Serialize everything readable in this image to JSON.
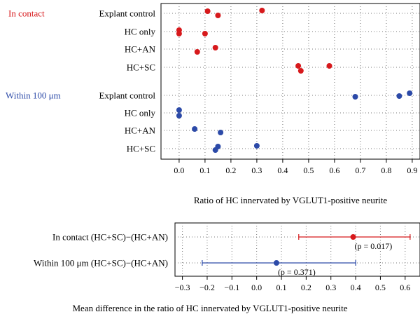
{
  "chart_data": [
    {
      "type": "scatter",
      "xlabel": "Ratio of HC innervated by VGLUT1-positive neurite",
      "xlim": [
        -0.07,
        0.93
      ],
      "xticks": [
        "0.0",
        "0.1",
        "0.2",
        "0.3",
        "0.4",
        "0.5",
        "0.6",
        "0.7",
        "0.8",
        "0.9"
      ],
      "grid": true,
      "groups": [
        {
          "name": "In contact",
          "color": "#d7191c",
          "categories": [
            {
              "label": "Explant control",
              "values": [
                0.11,
                0.15,
                0.32
              ]
            },
            {
              "label": "HC only",
              "values": [
                0.0,
                0.0,
                0.1
              ]
            },
            {
              "label": "HC+AN",
              "values": [
                0.07,
                0.14
              ]
            },
            {
              "label": "HC+SC",
              "values": [
                0.46,
                0.47,
                0.58
              ]
            }
          ]
        },
        {
          "name": "Within 100 μm",
          "color": "#2c4aa8",
          "categories": [
            {
              "label": "Explant control",
              "values": [
                0.68,
                0.85,
                0.89
              ]
            },
            {
              "label": "HC only",
              "values": [
                0.0,
                0.0
              ]
            },
            {
              "label": "HC+AN",
              "values": [
                0.06,
                0.16
              ]
            },
            {
              "label": "HC+SC",
              "values": [
                0.14,
                0.15,
                0.3
              ]
            }
          ]
        }
      ]
    },
    {
      "type": "scatter",
      "xlabel": "Mean difference in the ratio of HC innervated by VGLUT1-positive neurite",
      "xlim": [
        -0.33,
        0.66
      ],
      "xticks": [
        "−0.3",
        "−0.2",
        "−0.1",
        "0.0",
        "0.1",
        "0.2",
        "0.3",
        "0.4",
        "0.5",
        "0.6"
      ],
      "grid": true,
      "rows": [
        {
          "label": "In contact (HC+SC)−(HC+AN)",
          "mean": 0.39,
          "ci": [
            0.17,
            0.62
          ],
          "p_label": "(p = 0.017)",
          "color": "#d7191c"
        },
        {
          "label": "Within 100 μm (HC+SC)−(HC+AN)",
          "mean": 0.08,
          "ci": [
            -0.22,
            0.4
          ],
          "p_label": "(p = 0.371)",
          "color": "#2c4aa8"
        }
      ]
    }
  ]
}
